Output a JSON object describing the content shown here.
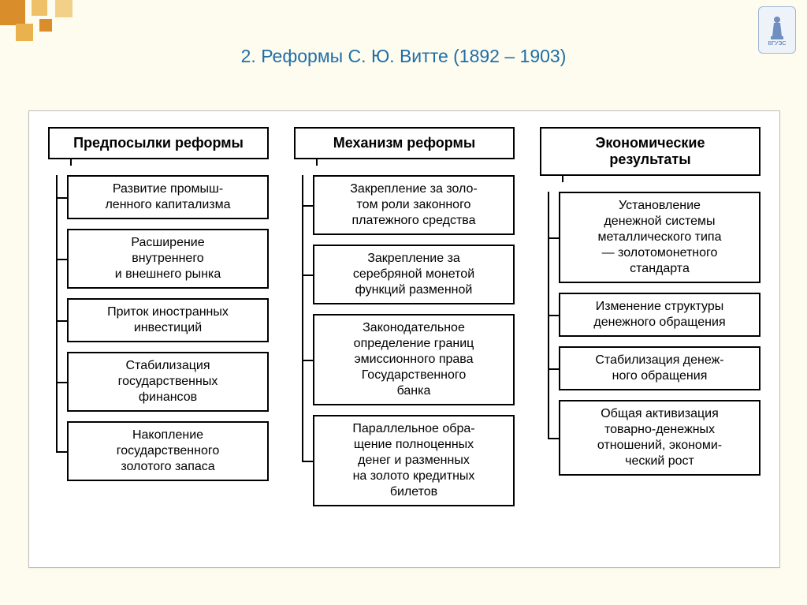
{
  "title": "2. Реформы С. Ю. Витте (1892 – 1903)",
  "title_color": "#1f6ea8",
  "background_color": "#fdfcef",
  "frame_border_color": "#bdbdbd",
  "box_border_color": "#000000",
  "text_color": "#000000",
  "logo_label": "ВГУЭС",
  "diagram": {
    "type": "tree-columns",
    "columns": [
      {
        "header": "Предпосылки реформы",
        "items": [
          "Развитие промыш-\nленного капитализма",
          "Расширение\nвнутреннего\nи внешнего рынка",
          "Приток иностранных\nинвестиций",
          "Стабилизация\nгосударственных\nфинансов",
          "Накопление\nгосударственного\nзолотого запаса"
        ]
      },
      {
        "header": "Механизм реформы",
        "items": [
          "Закрепление за золо-\nтом роли законного\nплатежного средства",
          "Закрепление за\nсеребряной монетой\nфункций разменной",
          "Законодательное\nопределение границ\nэмиссионного права\nГосударственного\nбанка",
          "Параллельное обра-\nщение полноценных\nденег и разменных\nна золото кредитных\nбилетов"
        ]
      },
      {
        "header": "Экономические\nрезультаты",
        "items": [
          "Установление\nденежной системы\nметаллического типа\n— золотомонетного\nстандарта",
          "Изменение структуры\nденежного обращения",
          "Стабилизация денеж-\nного обращения",
          "Общая активизация\nтоварно-денежных\nотношений, экономи-\nческий рост"
        ]
      }
    ]
  }
}
